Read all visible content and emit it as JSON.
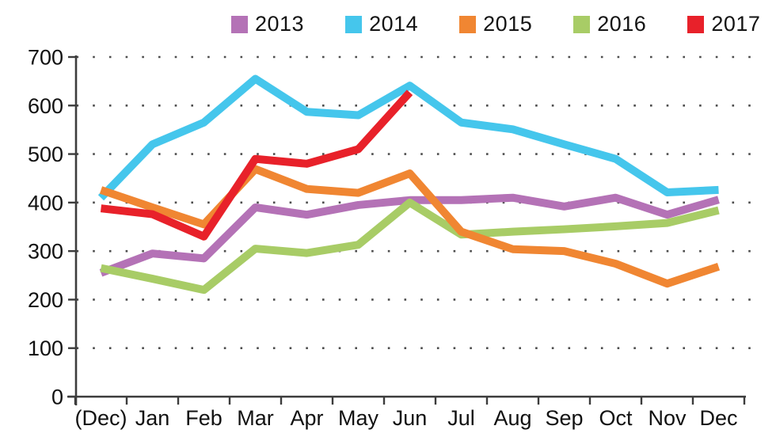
{
  "chart_data": {
    "type": "line",
    "title": "",
    "xlabel": "",
    "ylabel": "",
    "categories": [
      "(Dec)",
      "Jan",
      "Feb",
      "Mar",
      "Apr",
      "May",
      "Jun",
      "Jul",
      "Aug",
      "Sep",
      "Oct",
      "Nov",
      "Dec"
    ],
    "series": [
      {
        "name": "2013",
        "color": "#b472b6",
        "values": [
          255,
          295,
          285,
          390,
          375,
          395,
          405,
          405,
          410,
          392,
          410,
          375,
          406
        ]
      },
      {
        "name": "2014",
        "color": "#45c6ec",
        "values": [
          410,
          520,
          565,
          655,
          587,
          580,
          641,
          565,
          551,
          520,
          490,
          421,
          426
        ]
      },
      {
        "name": "2015",
        "color": "#f08632",
        "values": [
          426,
          390,
          355,
          469,
          428,
          420,
          460,
          340,
          304,
          300,
          274,
          233,
          268
        ]
      },
      {
        "name": "2016",
        "color": "#a8cc66",
        "values": [
          265,
          243,
          220,
          305,
          296,
          313,
          400,
          334,
          340,
          345,
          351,
          358,
          384
        ]
      },
      {
        "name": "2017",
        "color": "#e8212a",
        "values": [
          388,
          376,
          330,
          490,
          480,
          510,
          627
        ]
      }
    ],
    "ylim": [
      0,
      700
    ],
    "y_tick_step": 100,
    "y_tick_labels": [
      "0",
      "100",
      "200",
      "300",
      "400",
      "500",
      "600",
      "700"
    ],
    "grid": "dotted-horizontal",
    "legend_position": "top"
  }
}
